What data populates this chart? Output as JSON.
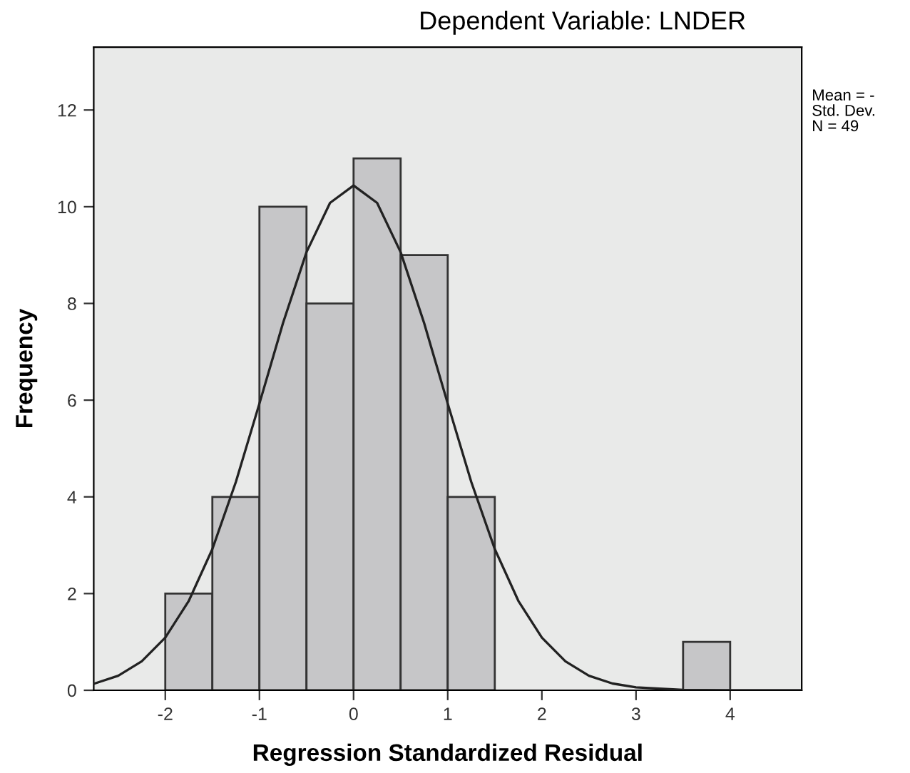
{
  "chart_data": {
    "type": "histogram",
    "title": "Dependent Variable: LNDER",
    "xlabel": "Regression Standardized Residual",
    "ylabel": "Frequency",
    "bins": [
      -2,
      -1.5,
      -1,
      -0.5,
      0,
      0.5,
      1,
      1.5,
      2,
      2.5,
      3,
      3.5,
      4
    ],
    "values": [
      2,
      4,
      10,
      8,
      11,
      9,
      4,
      0,
      0,
      0,
      0,
      1
    ],
    "color": "#c6c6c8",
    "series": [
      {
        "type": "line",
        "color": "#222222",
        "x": [
          -2.75,
          -2.5,
          -2.25,
          -2,
          -1.75,
          -1.5,
          -1.25,
          -1,
          -0.75,
          -0.5,
          -0.25,
          0,
          0.25,
          0.5,
          0.75,
          1,
          1.25,
          1.5,
          1.75,
          2,
          2.25,
          2.5,
          2.75,
          3,
          3.5,
          4,
          4.75
        ],
        "values": [
          0.14,
          0.3,
          0.6,
          1.09,
          1.85,
          2.92,
          4.31,
          5.93,
          7.59,
          9.06,
          10.08,
          10.44,
          10.08,
          9.06,
          7.59,
          5.93,
          4.31,
          2.92,
          1.85,
          1.09,
          0.6,
          0.3,
          0.14,
          0.06,
          0.01,
          0,
          0
        ]
      }
    ],
    "xlim": [
      -2.76,
      4.76
    ],
    "ylim": [
      0,
      13.3
    ],
    "xticks": [
      -2,
      -1,
      0,
      1,
      2,
      3,
      4
    ],
    "yticks": [
      0,
      2,
      4,
      6,
      8,
      10,
      12
    ],
    "grid": false,
    "legend": false,
    "annotations": [
      "Mean = -",
      "Std. Dev.",
      "N = 49"
    ]
  }
}
